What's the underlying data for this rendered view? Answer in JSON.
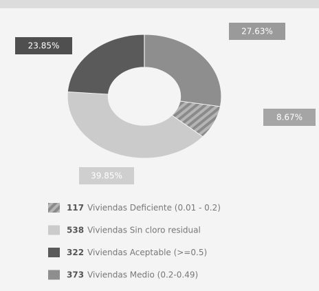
{
  "chart_data": {
    "type": "donut",
    "categories": [
      "Viviendas Deficiente (0.01 - 0.2)",
      "Viviendas Sin cloro residual",
      "Viviendas Aceptable (>=0.5)",
      "Viviendas Medio (0.2-0.49)"
    ],
    "counts": [
      117,
      538,
      322,
      373
    ],
    "values": [
      8.67,
      39.85,
      23.85,
      27.63
    ],
    "value_labels": [
      "8.67%",
      "39.85%",
      "23.85%",
      "27.63%"
    ],
    "colors": [
      "#a0a0a0",
      "#cbcbcb",
      "#5a5a5a",
      "#8e8e8e"
    ],
    "legend": "bottom"
  }
}
